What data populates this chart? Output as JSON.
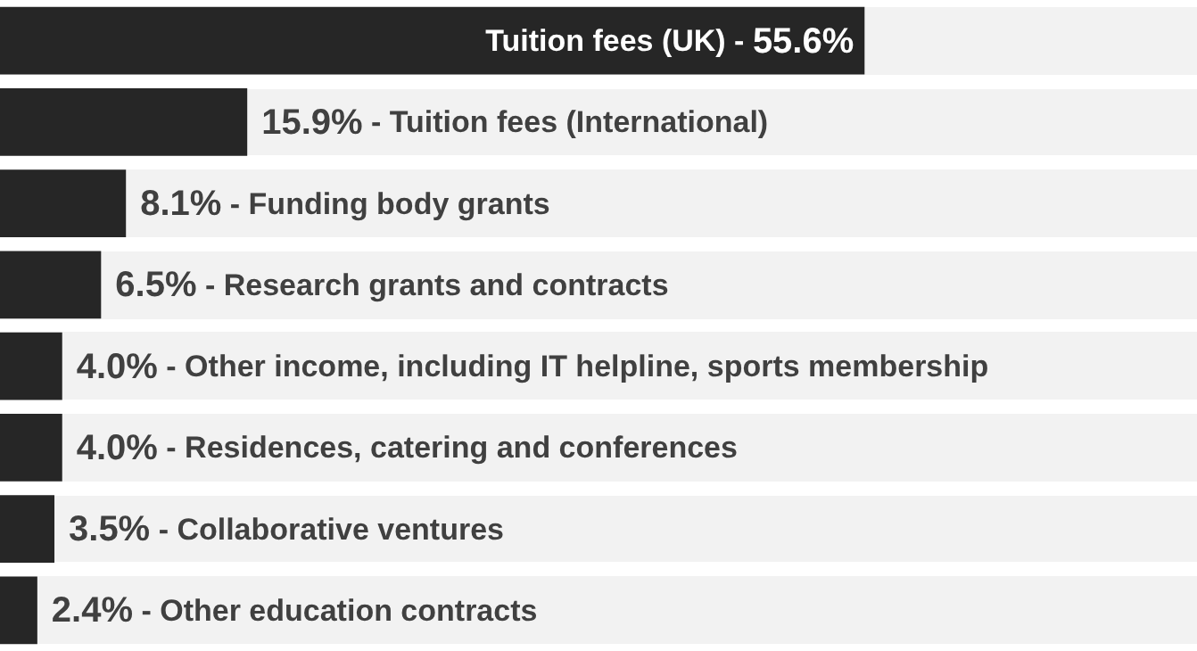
{
  "chart_data": {
    "type": "bar",
    "orientation": "horizontal",
    "categories": [
      "Tuition fees (UK) -",
      "- Tuition fees (International)",
      "- Funding body grants",
      "- Research grants and contracts",
      "- Other income, including IT helpline, sports membership",
      "- Residences, catering and conferences",
      "- Collaborative ventures",
      "- Other education contracts"
    ],
    "values": [
      55.6,
      15.9,
      8.1,
      6.5,
      4.0,
      4.0,
      3.5,
      2.4
    ],
    "value_labels": [
      "55.6%",
      "15.9%",
      "8.1%",
      "6.5%",
      "4.0%",
      "4.0%",
      "3.5%",
      "2.4%"
    ],
    "color": "#262626",
    "tick_labels": false,
    "legend": false
  }
}
